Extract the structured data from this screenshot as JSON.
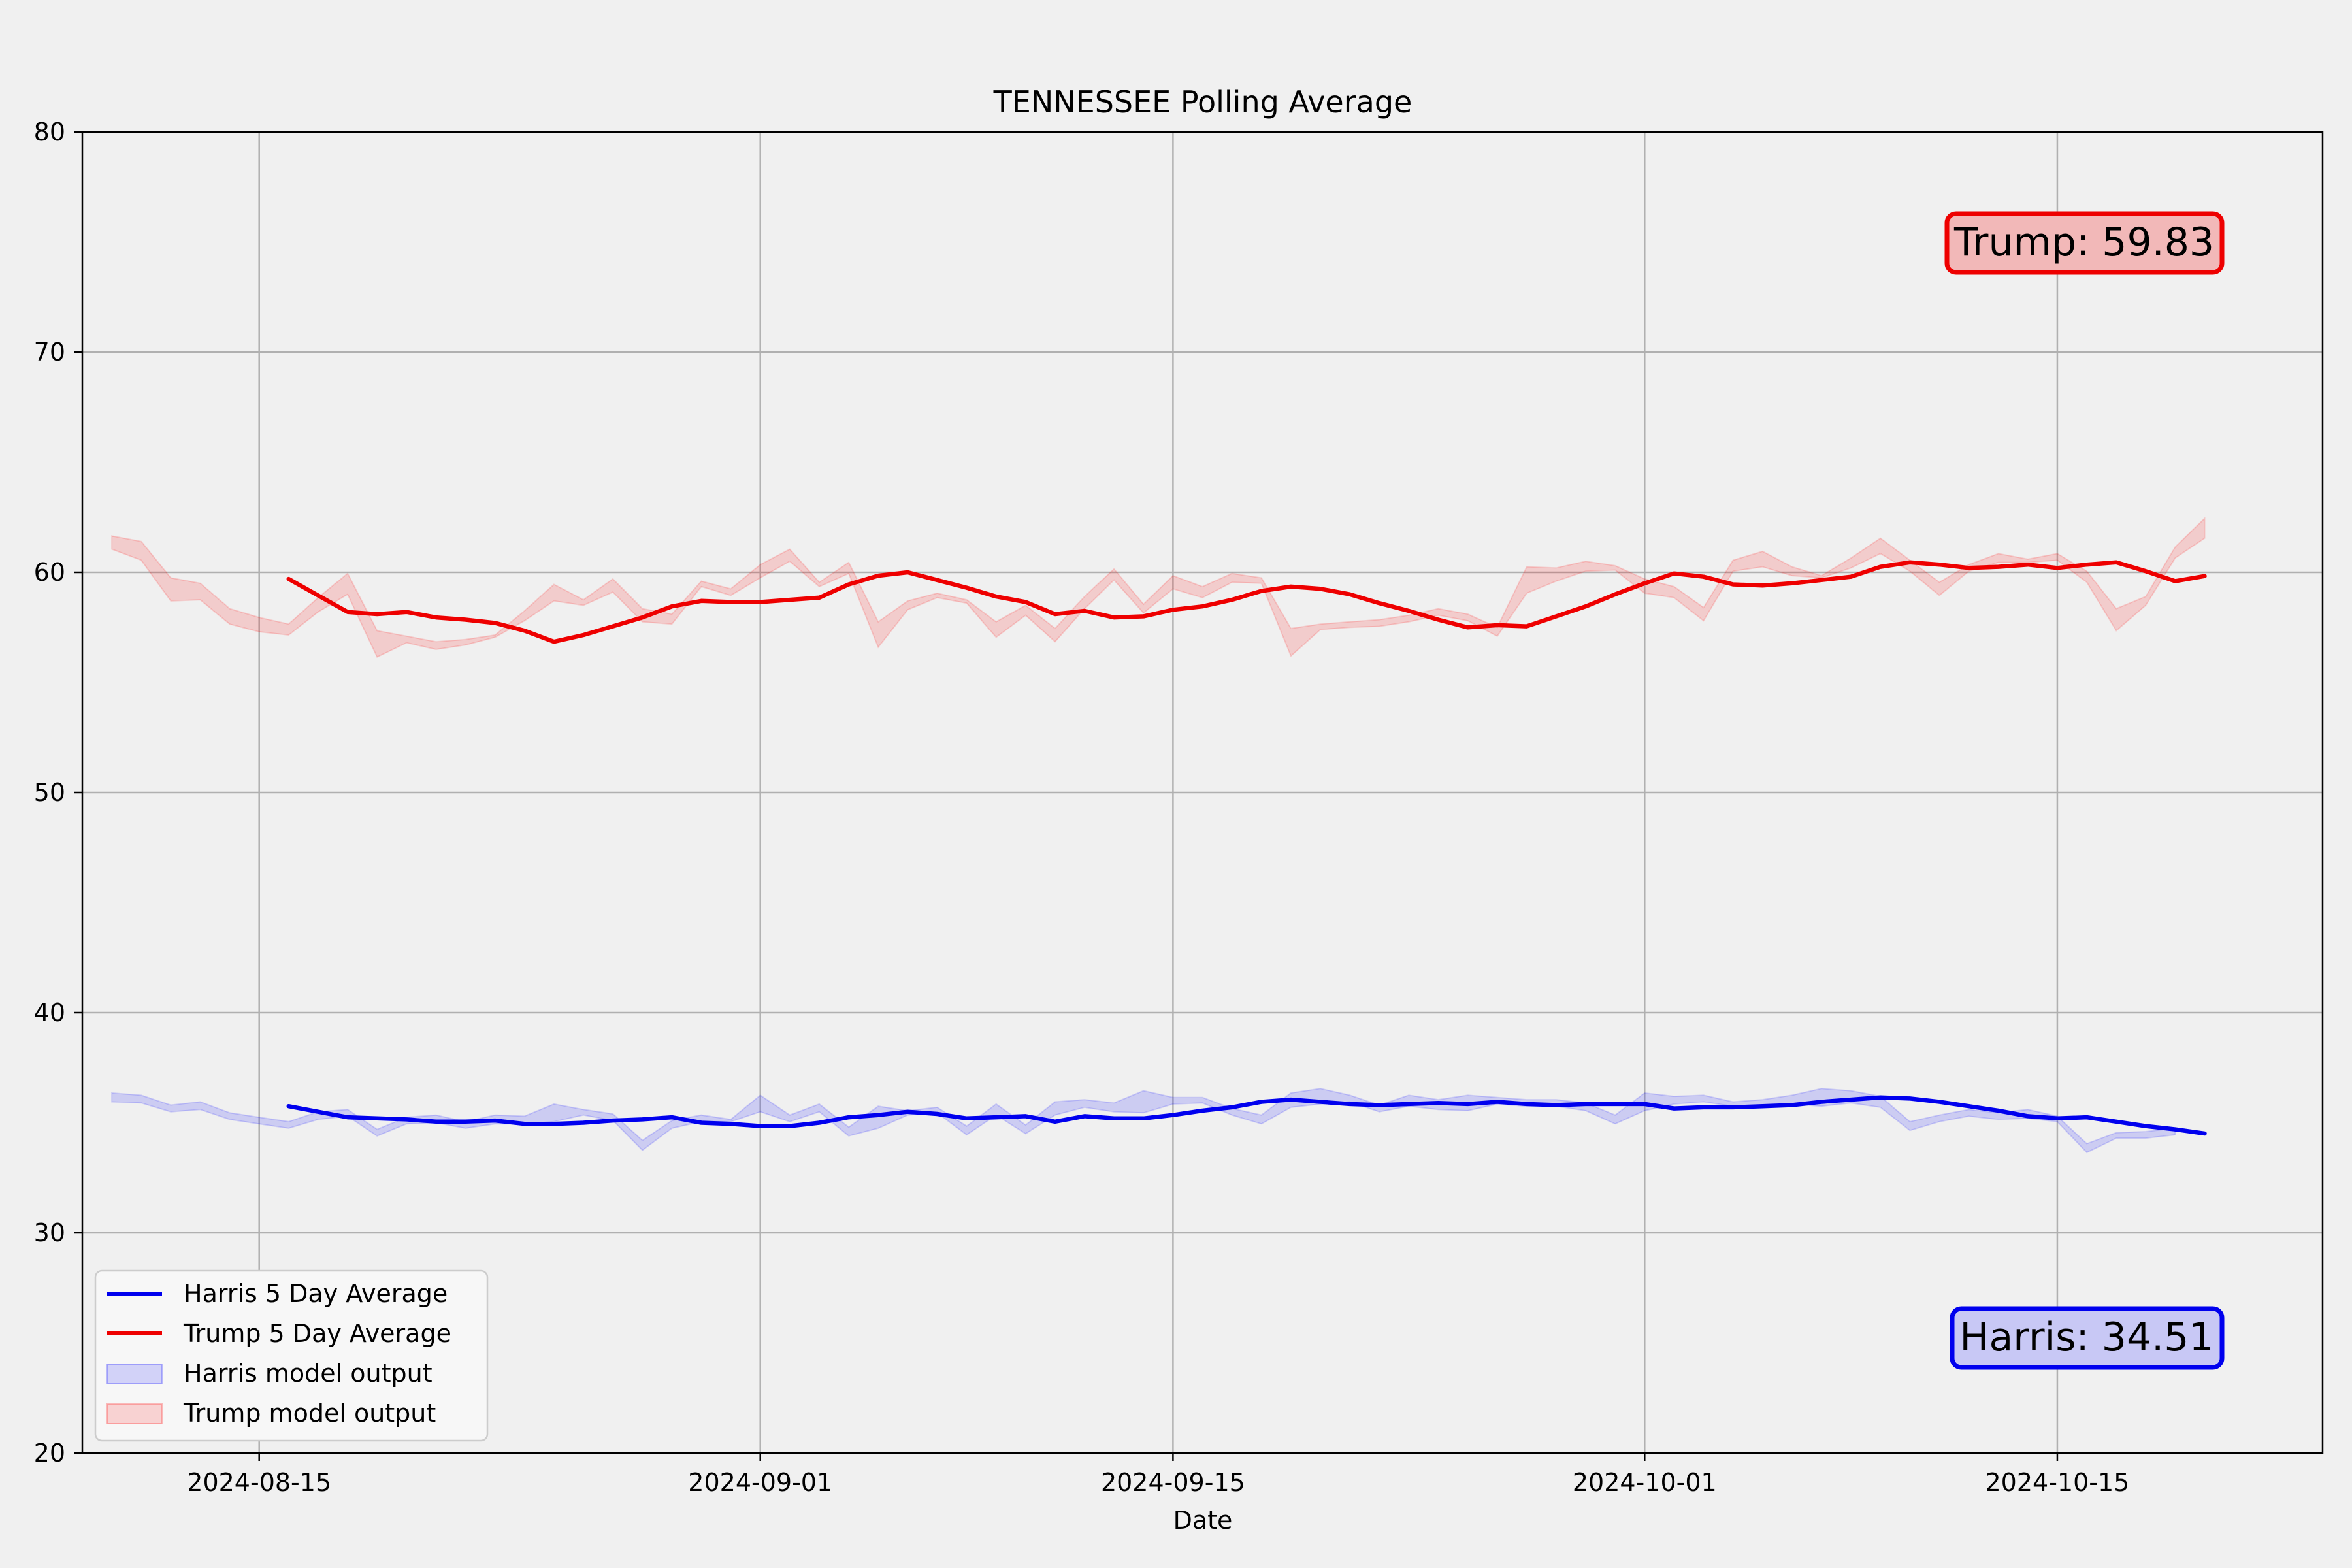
{
  "chart_data": {
    "type": "line",
    "title": "TENNESSEE Polling Average",
    "xlabel": "Date",
    "ylabel": "",
    "ylim": [
      20,
      80
    ],
    "yticks": [
      20,
      30,
      40,
      50,
      60,
      70,
      80
    ],
    "xlim": [
      "2024-08-09",
      "2024-10-24"
    ],
    "xticks": [
      "2024-08-15",
      "2024-09-01",
      "2024-09-15",
      "2024-10-01",
      "2024-10-15"
    ],
    "grid": true,
    "legend_position": "lower left",
    "series": [
      {
        "name": "Harris 5 Day Average",
        "color": "#0000ee",
        "start": "2024-08-16",
        "values": [
          35.75,
          35.5,
          35.25,
          35.2,
          35.15,
          35.05,
          35.05,
          35.1,
          34.95,
          34.95,
          35.0,
          35.1,
          35.15,
          35.25,
          35.0,
          34.95,
          34.85,
          34.85,
          35.0,
          35.25,
          35.35,
          35.5,
          35.4,
          35.2,
          35.25,
          35.3,
          35.05,
          35.3,
          35.2,
          35.2,
          35.35,
          35.55,
          35.7,
          35.95,
          36.05,
          35.95,
          35.85,
          35.8,
          35.85,
          35.9,
          35.85,
          35.95,
          35.85,
          35.8,
          35.85,
          35.85,
          35.85,
          35.65,
          35.7,
          35.7,
          35.75,
          35.8,
          35.95,
          36.05,
          36.15,
          36.1,
          35.95,
          35.75,
          35.55,
          35.3,
          35.2,
          35.25,
          35.05,
          34.85,
          34.7,
          34.51
        ]
      },
      {
        "name": "Trump 5 Day Average",
        "color": "#ee0000",
        "start": "2024-08-16",
        "values": [
          59.7,
          58.95,
          58.2,
          58.1,
          58.2,
          57.95,
          57.85,
          57.7,
          57.35,
          56.85,
          57.15,
          57.55,
          57.95,
          58.45,
          58.7,
          58.65,
          58.65,
          58.75,
          58.85,
          59.45,
          59.85,
          60.0,
          59.65,
          59.3,
          58.9,
          58.65,
          58.1,
          58.25,
          57.95,
          58.0,
          58.3,
          58.45,
          58.75,
          59.15,
          59.35,
          59.25,
          59.0,
          58.6,
          58.25,
          57.85,
          57.5,
          57.6,
          57.55,
          58.0,
          58.45,
          59.0,
          59.5,
          59.95,
          59.8,
          59.45,
          59.4,
          59.5,
          59.65,
          59.8,
          60.25,
          60.45,
          60.35,
          60.2,
          60.25,
          60.35,
          60.2,
          60.35,
          60.45,
          60.05,
          59.6,
          59.83
        ]
      }
    ],
    "bands": [
      {
        "name": "Harris model output",
        "color": "#0000ff",
        "start": "2024-08-10",
        "low": [
          35.95,
          35.9,
          35.5,
          35.6,
          35.15,
          34.95,
          34.75,
          35.15,
          35.3,
          34.4,
          34.95,
          35.0,
          34.75,
          34.95,
          34.95,
          35.05,
          35.35,
          35.1,
          33.75,
          34.75,
          35.05,
          35.05,
          35.5,
          35.05,
          35.5,
          34.4,
          34.75,
          35.35,
          35.45,
          34.45,
          35.35,
          34.5,
          35.35,
          35.7,
          35.5,
          35.45,
          35.85,
          35.9,
          35.35,
          34.95,
          35.7,
          35.85,
          35.95,
          35.5,
          35.75,
          35.6,
          35.55,
          35.85,
          35.75,
          35.75,
          35.55,
          34.95,
          35.55,
          35.85,
          35.95,
          35.75,
          35.75,
          35.85,
          35.75,
          35.9,
          35.7,
          34.65,
          35.05,
          35.3,
          35.15,
          35.2,
          35.05,
          33.65,
          34.3,
          34.3,
          34.45
        ],
        "high": [
          36.35,
          36.25,
          35.8,
          35.95,
          35.45,
          35.25,
          35.05,
          35.5,
          35.6,
          34.7,
          35.25,
          35.35,
          35.05,
          35.35,
          35.3,
          35.85,
          35.6,
          35.4,
          34.2,
          35.1,
          35.35,
          35.15,
          36.25,
          35.35,
          35.85,
          34.8,
          35.75,
          35.55,
          35.7,
          34.85,
          35.85,
          34.9,
          35.95,
          36.05,
          35.9,
          36.45,
          36.15,
          36.15,
          35.65,
          35.35,
          36.35,
          36.55,
          36.25,
          35.8,
          36.25,
          36.05,
          36.25,
          36.15,
          36.05,
          36.05,
          35.9,
          35.35,
          36.35,
          36.2,
          36.25,
          35.95,
          36.05,
          36.25,
          36.55,
          36.45,
          36.2,
          35.05,
          35.35,
          35.6,
          35.45,
          35.6,
          35.3,
          34.05,
          34.55,
          34.6,
          34.75
        ]
      },
      {
        "name": "Trump model output",
        "color": "#ff0000",
        "start": "2024-08-10",
        "low": [
          61.05,
          60.55,
          58.7,
          58.75,
          57.65,
          57.3,
          57.15,
          58.2,
          59.0,
          56.15,
          56.8,
          56.5,
          56.7,
          57.05,
          57.8,
          58.7,
          58.5,
          59.1,
          57.75,
          57.65,
          59.35,
          58.95,
          59.75,
          60.5,
          59.35,
          59.95,
          56.6,
          58.3,
          58.85,
          58.6,
          57.05,
          58.05,
          56.85,
          58.35,
          59.65,
          58.15,
          59.25,
          58.85,
          59.55,
          59.5,
          56.2,
          57.4,
          57.5,
          57.55,
          57.75,
          58.05,
          57.8,
          57.1,
          59.05,
          59.6,
          60.05,
          60.1,
          59.05,
          58.85,
          57.8,
          60.05,
          60.25,
          59.85,
          59.75,
          60.2,
          60.85,
          60.05,
          58.95,
          60.05,
          60.45,
          60.45,
          60.55,
          59.55,
          57.35,
          58.5,
          60.65,
          61.55
        ],
        "high": [
          61.65,
          61.4,
          59.75,
          59.5,
          58.35,
          57.95,
          57.65,
          58.85,
          59.95,
          57.35,
          57.1,
          56.85,
          56.95,
          57.15,
          58.25,
          59.45,
          58.75,
          59.7,
          58.35,
          58.1,
          59.6,
          59.25,
          60.35,
          61.05,
          59.55,
          60.45,
          57.75,
          58.7,
          59.05,
          58.75,
          57.75,
          58.5,
          57.45,
          58.9,
          60.15,
          58.55,
          59.85,
          59.35,
          59.95,
          59.75,
          57.45,
          57.65,
          57.75,
          57.85,
          58.05,
          58.35,
          58.1,
          57.5,
          60.25,
          60.2,
          60.5,
          60.3,
          59.7,
          59.35,
          58.4,
          60.55,
          60.95,
          60.25,
          59.85,
          60.65,
          61.55,
          60.55,
          59.55,
          60.35,
          60.85,
          60.6,
          60.85,
          60.05,
          58.35,
          58.9,
          61.15,
          62.45
        ]
      }
    ],
    "annotations": [
      {
        "text": "Trump: 59.83",
        "position": "top-right",
        "edge": "#ee0000",
        "face": "#f2b8b8"
      },
      {
        "text": "Harris: 34.51",
        "position": "bottom-right",
        "edge": "#0000ee",
        "face": "#c8c8f5"
      }
    ]
  }
}
